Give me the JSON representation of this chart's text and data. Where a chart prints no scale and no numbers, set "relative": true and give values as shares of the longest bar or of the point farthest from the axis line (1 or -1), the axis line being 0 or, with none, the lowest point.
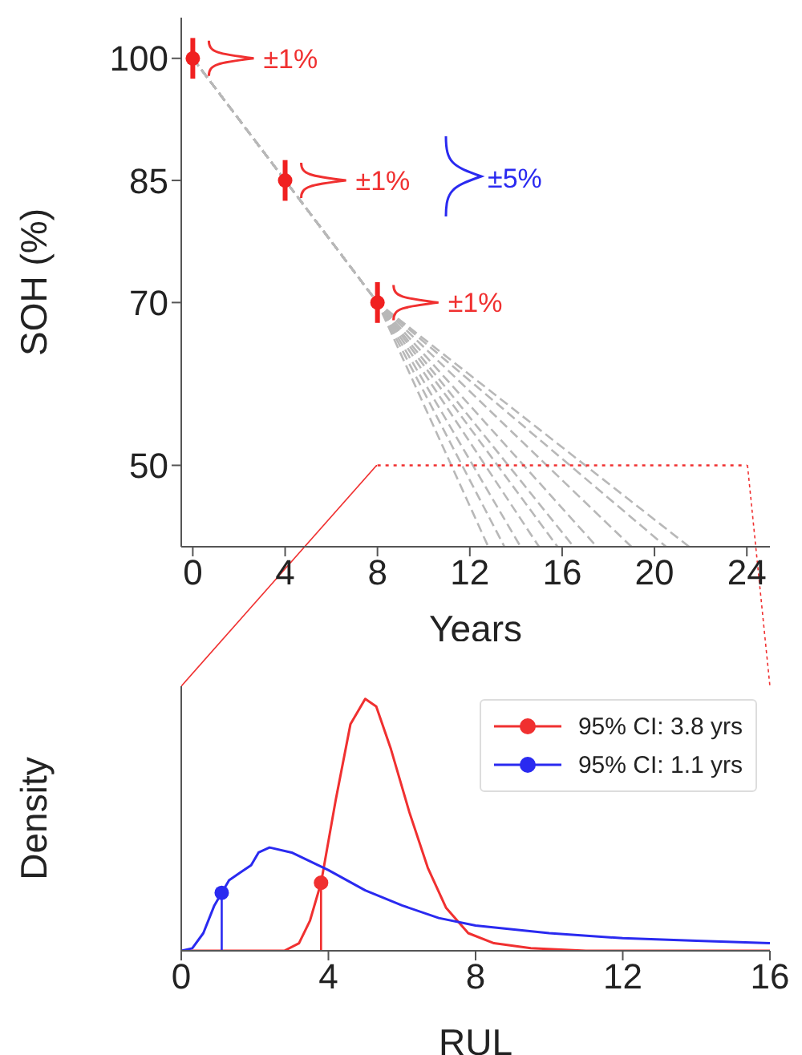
{
  "chart_data": [
    {
      "type": "line",
      "xlabel": "Years",
      "ylabel": "SOH (%)",
      "xlim": [
        -0.5,
        25
      ],
      "ylim": [
        40,
        105
      ],
      "xticks": [
        0,
        4,
        8,
        12,
        16,
        20,
        24
      ],
      "yticks": [
        50,
        70,
        85,
        100
      ],
      "line_style": "dashed",
      "marker": "none",
      "annotations": [
        {
          "text": "±1%",
          "x": 0,
          "y": 100
        },
        {
          "text": "±1%",
          "x": 4,
          "y": 85
        },
        {
          "text": "±1%",
          "x": 8,
          "y": 70
        },
        "±5%"
      ],
      "series": [
        {
          "color": "#b8b8b8",
          "x": [
            0,
            8,
            12.8
          ],
          "values": [
            100,
            70,
            40
          ]
        },
        {
          "color": "#b8b8b8",
          "x": [
            0,
            8,
            13.5
          ],
          "values": [
            100,
            70,
            40
          ]
        },
        {
          "color": "#b8b8b8",
          "x": [
            0,
            8,
            14.2
          ],
          "values": [
            100,
            70,
            40
          ]
        },
        {
          "color": "#b8b8b8",
          "x": [
            0,
            8,
            15
          ],
          "values": [
            100,
            70,
            40
          ]
        },
        {
          "color": "#b8b8b8",
          "x": [
            0,
            8,
            15.8
          ],
          "values": [
            100,
            70,
            40
          ]
        },
        {
          "color": "#b8b8b8",
          "x": [
            0,
            8,
            16.5
          ],
          "values": [
            100,
            70,
            40
          ]
        },
        {
          "color": "#b8b8b8",
          "x": [
            0,
            8,
            17.5
          ],
          "values": [
            100,
            70,
            40
          ]
        },
        {
          "color": "#b8b8b8",
          "x": [
            0,
            8,
            19
          ],
          "values": [
            100,
            70,
            40
          ]
        },
        {
          "color": "#b8b8b8",
          "x": [
            0,
            8,
            20.5
          ],
          "values": [
            100,
            70,
            40
          ]
        },
        {
          "color": "#b8b8b8",
          "x": [
            0,
            8,
            21.5
          ],
          "values": [
            100,
            70,
            40
          ]
        },
        {
          "color": "#f03030",
          "line_style": "dotted",
          "x": [
            8,
            24
          ],
          "values": [
            50,
            50
          ]
        },
        {
          "type": "scatter",
          "color": "#f02020",
          "marker": "circle",
          "x": [
            0,
            4,
            8
          ],
          "values": [
            100,
            85,
            70
          ],
          "errors": [
            2.5,
            2.5,
            2.5
          ]
        }
      ]
    },
    {
      "type": "line",
      "xlabel": "RUL",
      "ylabel": "Density",
      "relative": true,
      "xlim": [
        0,
        16
      ],
      "xticks": [
        0,
        4,
        8,
        12,
        16
      ],
      "legend": "top right",
      "marker": "none",
      "line_style": "solid",
      "series": [
        {
          "name": "95% CI: 3.8 yrs",
          "color": "#f03030",
          "x": [
            0,
            2.8,
            3.2,
            3.5,
            3.8,
            4.2,
            4.6,
            5.0,
            5.3,
            5.7,
            6.2,
            6.7,
            7.2,
            7.8,
            8.5,
            9.5,
            11,
            16
          ],
          "values": [
            0,
            0,
            0.03,
            0.12,
            0.27,
            0.6,
            0.9,
            1,
            0.97,
            0.8,
            0.55,
            0.33,
            0.17,
            0.07,
            0.03,
            0.01,
            0,
            0
          ]
        },
        {
          "name": "95% CI: 1.1 yrs",
          "color": "#2a2af0",
          "x": [
            0,
            0.3,
            0.6,
            0.9,
            1.1,
            1.3,
            1.6,
            1.9,
            2.1,
            2.4,
            3,
            4,
            5,
            6,
            7,
            8,
            10,
            12,
            14,
            16
          ],
          "values": [
            0,
            0.01,
            0.07,
            0.18,
            0.23,
            0.28,
            0.31,
            0.34,
            0.39,
            0.41,
            0.39,
            0.32,
            0.24,
            0.18,
            0.13,
            0.1,
            0.07,
            0.05,
            0.04,
            0.03
          ]
        },
        {
          "color": "#f03030",
          "x": [
            3.8,
            3.8
          ],
          "values": [
            0,
            0.27
          ]
        },
        {
          "color": "#2a2af0",
          "x": [
            1.1,
            1.1
          ],
          "values": [
            0,
            0.23
          ]
        },
        {
          "type": "scatter",
          "color": "#f03030",
          "marker": "circle",
          "x": [
            3.8
          ],
          "values": [
            0.27
          ]
        },
        {
          "type": "scatter",
          "color": "#2a2af0",
          "marker": "circle",
          "x": [
            1.1
          ],
          "values": [
            0.23
          ]
        }
      ]
    }
  ]
}
